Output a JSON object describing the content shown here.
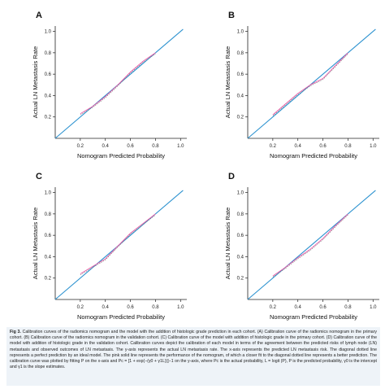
{
  "panels": [
    {
      "id": "A",
      "chart_data": {
        "type": "line",
        "panel_label": "A",
        "xlabel": "Nomogram Predicted Probability",
        "ylabel": "Actual LN Metastasis Rate",
        "xlim": [
          0,
          1.05
        ],
        "ylim": [
          0,
          1.05
        ],
        "xticks": [
          "0.2",
          "0.4",
          "0.6",
          "0.8",
          "1.0"
        ],
        "yticks": [
          "0.2",
          "0.4",
          "0.6",
          "0.8",
          "1.0"
        ],
        "series": [
          {
            "role": "ideal",
            "color": "#2e93d0",
            "x": [
              0,
              1.02
            ],
            "y": [
              0,
              1.02
            ]
          },
          {
            "role": "apparent",
            "color": "#e85aa6",
            "x": [
              0.2,
              0.3,
              0.4,
              0.5,
              0.6,
              0.7,
              0.8
            ],
            "y": [
              0.23,
              0.3,
              0.39,
              0.5,
              0.62,
              0.72,
              0.8
            ]
          },
          {
            "role": "bias-corrected",
            "color": "#777777",
            "x": [
              0.2,
              0.3,
              0.4,
              0.5,
              0.6,
              0.7,
              0.8
            ],
            "y": [
              0.22,
              0.29,
              0.38,
              0.49,
              0.61,
              0.71,
              0.79
            ]
          }
        ]
      }
    },
    {
      "id": "B",
      "chart_data": {
        "type": "line",
        "panel_label": "B",
        "xlabel": "Nomogram Predicted Probability",
        "ylabel": "Actual LN Metastasis Rate",
        "xlim": [
          0,
          1.05
        ],
        "ylim": [
          0,
          1.05
        ],
        "xticks": [
          "0.2",
          "0.4",
          "0.6",
          "0.8",
          "1.0"
        ],
        "yticks": [
          "0.2",
          "0.4",
          "0.6",
          "0.8",
          "1.0"
        ],
        "series": [
          {
            "role": "ideal",
            "color": "#2e93d0",
            "x": [
              0,
              1.02
            ],
            "y": [
              0,
              1.02
            ]
          },
          {
            "role": "apparent",
            "color": "#e85aa6",
            "x": [
              0.2,
              0.3,
              0.4,
              0.5,
              0.6,
              0.7,
              0.8
            ],
            "y": [
              0.22,
              0.32,
              0.42,
              0.5,
              0.56,
              0.68,
              0.8
            ]
          },
          {
            "role": "bias-corrected",
            "color": "#777777",
            "x": [
              0.2,
              0.3,
              0.4,
              0.5,
              0.6,
              0.7,
              0.8
            ],
            "y": [
              0.21,
              0.31,
              0.41,
              0.49,
              0.55,
              0.67,
              0.79
            ]
          }
        ]
      }
    },
    {
      "id": "C",
      "chart_data": {
        "type": "line",
        "panel_label": "C",
        "xlabel": "Nomogram Predicted Probability",
        "ylabel": "Actual LN Metastasis Rate",
        "xlim": [
          0,
          1.05
        ],
        "ylim": [
          0,
          1.05
        ],
        "xticks": [
          "0.2",
          "0.4",
          "0.6",
          "0.8",
          "1.0"
        ],
        "yticks": [
          "0.2",
          "0.4",
          "0.6",
          "0.8",
          "1.0"
        ],
        "series": [
          {
            "role": "ideal",
            "color": "#2e93d0",
            "x": [
              0,
              1.02
            ],
            "y": [
              0,
              1.02
            ]
          },
          {
            "role": "apparent",
            "color": "#e85aa6",
            "x": [
              0.2,
              0.3,
              0.4,
              0.5,
              0.6,
              0.7,
              0.8
            ],
            "y": [
              0.24,
              0.31,
              0.38,
              0.5,
              0.62,
              0.71,
              0.8
            ]
          },
          {
            "role": "bias-corrected",
            "color": "#777777",
            "x": [
              0.2,
              0.3,
              0.4,
              0.5,
              0.6,
              0.7,
              0.8
            ],
            "y": [
              0.23,
              0.3,
              0.37,
              0.49,
              0.61,
              0.7,
              0.79
            ]
          }
        ]
      }
    },
    {
      "id": "D",
      "chart_data": {
        "type": "line",
        "panel_label": "D",
        "xlabel": "Nomogram Predicted Probability",
        "ylabel": "Actual LN Metastasis Rate",
        "xlim": [
          0,
          1.05
        ],
        "ylim": [
          0,
          1.05
        ],
        "xticks": [
          "0.2",
          "0.4",
          "0.6",
          "0.8",
          "1.0"
        ],
        "yticks": [
          "0.2",
          "0.4",
          "0.6",
          "0.8",
          "1.0"
        ],
        "series": [
          {
            "role": "ideal",
            "color": "#2e93d0",
            "x": [
              0,
              1.02
            ],
            "y": [
              0,
              1.02
            ]
          },
          {
            "role": "apparent",
            "color": "#e85aa6",
            "x": [
              0.2,
              0.3,
              0.4,
              0.5,
              0.6,
              0.7,
              0.8
            ],
            "y": [
              0.22,
              0.3,
              0.39,
              0.47,
              0.57,
              0.69,
              0.8
            ]
          },
          {
            "role": "bias-corrected",
            "color": "#777777",
            "x": [
              0.2,
              0.3,
              0.4,
              0.5,
              0.6,
              0.7,
              0.8
            ],
            "y": [
              0.21,
              0.29,
              0.38,
              0.46,
              0.56,
              0.68,
              0.79
            ]
          }
        ]
      }
    }
  ],
  "caption": {
    "label": "Fig 3.",
    "text": "Calibration curves of the radiomics nomogram and the model with the addition of histologic grade prediction in each cohort. (A) Calibration curve of the radiomics nomogram in the primary cohort. (B) Calibration curve of the radiomics nomogram in the validation cohort. (C) Calibration curve of the model with addition of histologic grade in the primary cohort. (D) Calibration curve of the model with addition of histologic grade in the validation cohort. Calibration curves depict the calibration of each model in terms of the agreement between the predicted risks of lymph node (LN) metastasis and observed outcomes of LN metastasis. The y-axis represents the actual LN metastasis rate. The x-axis represents the predicted LN metastasis risk. The diagonal dotted line represents a perfect prediction by an ideal model. The pink solid line represents the performance of the nomogram, of which a closer fit to the diagonal dotted line represents a better prediction. The calibration curve was plotted by fitting P on the x-axis and Pc = [1 + exp(−(γ0 + γ1L))]−1 on the y-axis, where Pc is the actual probability, L = logit (P), P is the predicted probability, γ0 is the intercept and γ1 is the slope estimates."
  }
}
